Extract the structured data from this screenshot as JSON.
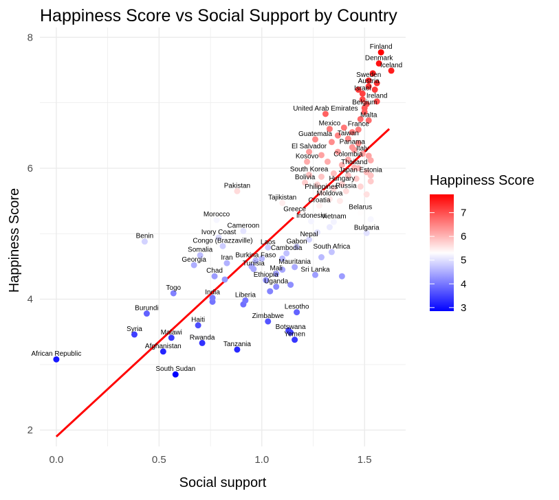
{
  "chart_data": {
    "type": "scatter",
    "title": "Happiness Score vs Social Support by Country",
    "xlabel": "Social support",
    "ylabel": "Happiness Score",
    "xlim": [
      -0.08,
      1.7
    ],
    "ylim": [
      1.75,
      8.15
    ],
    "x_ticks": [
      0.0,
      0.5,
      1.0,
      1.5
    ],
    "x_tick_labels": [
      "0.0",
      "0.5",
      "1.0",
      "1.5"
    ],
    "y_ticks": [
      2,
      4,
      6,
      8
    ],
    "y_tick_labels": [
      "2",
      "4",
      "6",
      "8"
    ],
    "grid": true,
    "legend": {
      "title": "Happiness Score",
      "position": "right",
      "min": 2.85,
      "max": 7.77,
      "ticks": [
        3,
        4,
        5,
        6,
        7
      ],
      "tick_labels": [
        "3",
        "4",
        "5",
        "6",
        "7"
      ],
      "colors": {
        "low": "#0000ff",
        "mid": "#ffffff",
        "high": "#ff0000",
        "midpoint": 5.3
      }
    },
    "trend_line": {
      "x": [
        0.0,
        1.62
      ],
      "y": [
        1.9,
        6.6
      ],
      "color": "#ff0000"
    },
    "labeled_points": [
      {
        "name": "Finland",
        "x": 1.58,
        "y": 7.77
      },
      {
        "name": "Denmark",
        "x": 1.57,
        "y": 7.6
      },
      {
        "name": "Iceland",
        "x": 1.63,
        "y": 7.49
      },
      {
        "name": "Sweden",
        "x": 1.52,
        "y": 7.34
      },
      {
        "name": "Austria",
        "x": 1.52,
        "y": 7.25
      },
      {
        "name": "Israel",
        "x": 1.49,
        "y": 7.14
      },
      {
        "name": "Ireland",
        "x": 1.56,
        "y": 7.02
      },
      {
        "name": "Belgium",
        "x": 1.5,
        "y": 6.92
      },
      {
        "name": "United Arab Emirates",
        "x": 1.31,
        "y": 6.83
      },
      {
        "name": "Malta",
        "x": 1.52,
        "y": 6.73
      },
      {
        "name": "France",
        "x": 1.47,
        "y": 6.59
      },
      {
        "name": "Mexico",
        "x": 1.33,
        "y": 6.6
      },
      {
        "name": "Taiwan",
        "x": 1.42,
        "y": 6.45
      },
      {
        "name": "Guatemala",
        "x": 1.26,
        "y": 6.44
      },
      {
        "name": "Panama",
        "x": 1.44,
        "y": 6.32
      },
      {
        "name": "El Salvador",
        "x": 1.23,
        "y": 6.25
      },
      {
        "name": "Italy",
        "x": 1.49,
        "y": 6.22
      },
      {
        "name": "Colombia",
        "x": 1.42,
        "y": 6.13
      },
      {
        "name": "Kosovo",
        "x": 1.22,
        "y": 6.1
      },
      {
        "name": "Thailand",
        "x": 1.45,
        "y": 6.01
      },
      {
        "name": "South Korea",
        "x": 1.23,
        "y": 5.9
      },
      {
        "name": "Japan",
        "x": 1.42,
        "y": 5.89
      },
      {
        "name": "Estonia",
        "x": 1.53,
        "y": 5.89
      },
      {
        "name": "Bolivia",
        "x": 1.21,
        "y": 5.78
      },
      {
        "name": "Hungary",
        "x": 1.39,
        "y": 5.76
      },
      {
        "name": "Philippines",
        "x": 1.29,
        "y": 5.63
      },
      {
        "name": "Russia",
        "x": 1.41,
        "y": 5.65
      },
      {
        "name": "Pakistan",
        "x": 0.88,
        "y": 5.65
      },
      {
        "name": "Moldova",
        "x": 1.33,
        "y": 5.53
      },
      {
        "name": "Tajikistan",
        "x": 1.1,
        "y": 5.47
      },
      {
        "name": "Croatia",
        "x": 1.28,
        "y": 5.43
      },
      {
        "name": "Belarus",
        "x": 1.48,
        "y": 5.32
      },
      {
        "name": "Greece",
        "x": 1.16,
        "y": 5.29
      },
      {
        "name": "Morocco",
        "x": 0.78,
        "y": 5.21
      },
      {
        "name": "Indonesia",
        "x": 1.24,
        "y": 5.19
      },
      {
        "name": "Vietnam",
        "x": 1.35,
        "y": 5.18
      },
      {
        "name": "Cameroon",
        "x": 0.91,
        "y": 5.04
      },
      {
        "name": "Bulgaria",
        "x": 1.51,
        "y": 5.01
      },
      {
        "name": "Ivory Coast",
        "x": 0.79,
        "y": 4.94
      },
      {
        "name": "Nepal",
        "x": 1.23,
        "y": 4.91
      },
      {
        "name": "Benin",
        "x": 0.43,
        "y": 4.88
      },
      {
        "name": "Congo (Brazzaville)",
        "x": 0.81,
        "y": 4.81
      },
      {
        "name": "Gabon",
        "x": 1.17,
        "y": 4.8
      },
      {
        "name": "Laos",
        "x": 1.03,
        "y": 4.79
      },
      {
        "name": "South Africa",
        "x": 1.34,
        "y": 4.72
      },
      {
        "name": "Cambodia",
        "x": 1.12,
        "y": 4.7
      },
      {
        "name": "Somalia",
        "x": 0.7,
        "y": 4.67
      },
      {
        "name": "Burkina Faso",
        "x": 0.97,
        "y": 4.59
      },
      {
        "name": "Georgia",
        "x": 0.67,
        "y": 4.52
      },
      {
        "name": "Iran",
        "x": 0.83,
        "y": 4.55
      },
      {
        "name": "Mauritania",
        "x": 1.16,
        "y": 4.49
      },
      {
        "name": "Tunisia",
        "x": 0.96,
        "y": 4.46
      },
      {
        "name": "Mali",
        "x": 1.07,
        "y": 4.39
      },
      {
        "name": "Sri Lanka",
        "x": 1.26,
        "y": 4.37
      },
      {
        "name": "Chad",
        "x": 0.77,
        "y": 4.35
      },
      {
        "name": "Ethiopia",
        "x": 1.02,
        "y": 4.29
      },
      {
        "name": "Uganda",
        "x": 1.07,
        "y": 4.19
      },
      {
        "name": "Togo",
        "x": 0.57,
        "y": 4.09
      },
      {
        "name": "India",
        "x": 0.76,
        "y": 4.02
      },
      {
        "name": "Liberia",
        "x": 0.92,
        "y": 3.98
      },
      {
        "name": "Burundi",
        "x": 0.44,
        "y": 3.78
      },
      {
        "name": "Lesotho",
        "x": 1.17,
        "y": 3.8
      },
      {
        "name": "Zimbabwe",
        "x": 1.03,
        "y": 3.66
      },
      {
        "name": "Haiti",
        "x": 0.69,
        "y": 3.6
      },
      {
        "name": "Syria",
        "x": 0.38,
        "y": 3.46
      },
      {
        "name": "Botswana",
        "x": 1.14,
        "y": 3.49
      },
      {
        "name": "Malawi",
        "x": 0.56,
        "y": 3.41
      },
      {
        "name": "Yemen",
        "x": 1.16,
        "y": 3.38
      },
      {
        "name": "Rwanda",
        "x": 0.71,
        "y": 3.33
      },
      {
        "name": "Afghanistan",
        "x": 0.52,
        "y": 3.2
      },
      {
        "name": "Tanzania",
        "x": 0.88,
        "y": 3.23
      },
      {
        "name": "African Republic",
        "x": 0.0,
        "y": 3.08
      },
      {
        "name": "South Sudan",
        "x": 0.58,
        "y": 2.85
      }
    ],
    "unlabeled_points": [
      {
        "x": 1.54,
        "y": 7.45
      },
      {
        "x": 1.56,
        "y": 7.3
      },
      {
        "x": 1.55,
        "y": 7.2
      },
      {
        "x": 1.47,
        "y": 7.2
      },
      {
        "x": 1.49,
        "y": 7.05
      },
      {
        "x": 1.51,
        "y": 6.98
      },
      {
        "x": 1.5,
        "y": 6.86
      },
      {
        "x": 1.48,
        "y": 6.75
      },
      {
        "x": 1.4,
        "y": 6.62
      },
      {
        "x": 1.44,
        "y": 6.55
      },
      {
        "x": 1.37,
        "y": 6.5
      },
      {
        "x": 1.34,
        "y": 6.4
      },
      {
        "x": 1.47,
        "y": 6.38
      },
      {
        "x": 1.45,
        "y": 6.28
      },
      {
        "x": 1.29,
        "y": 6.2
      },
      {
        "x": 1.37,
        "y": 6.25
      },
      {
        "x": 1.52,
        "y": 6.19
      },
      {
        "x": 1.53,
        "y": 6.12
      },
      {
        "x": 1.32,
        "y": 6.1
      },
      {
        "x": 1.39,
        "y": 6.05
      },
      {
        "x": 1.47,
        "y": 6.0
      },
      {
        "x": 1.51,
        "y": 5.94
      },
      {
        "x": 1.35,
        "y": 5.92
      },
      {
        "x": 1.29,
        "y": 5.87
      },
      {
        "x": 1.46,
        "y": 5.84
      },
      {
        "x": 1.53,
        "y": 5.8
      },
      {
        "x": 1.27,
        "y": 5.75
      },
      {
        "x": 1.48,
        "y": 5.72
      },
      {
        "x": 1.35,
        "y": 5.69
      },
      {
        "x": 1.51,
        "y": 5.6
      },
      {
        "x": 1.38,
        "y": 5.5
      },
      {
        "x": 1.2,
        "y": 5.35
      },
      {
        "x": 1.53,
        "y": 5.22
      },
      {
        "x": 1.33,
        "y": 5.1
      },
      {
        "x": 1.27,
        "y": 5.02
      },
      {
        "x": 1.0,
        "y": 4.62
      },
      {
        "x": 1.1,
        "y": 4.62
      },
      {
        "x": 1.29,
        "y": 4.64
      },
      {
        "x": 1.39,
        "y": 4.35
      },
      {
        "x": 0.95,
        "y": 4.5
      },
      {
        "x": 1.1,
        "y": 4.45
      },
      {
        "x": 1.14,
        "y": 4.22
      },
      {
        "x": 1.04,
        "y": 4.12
      },
      {
        "x": 0.82,
        "y": 4.3
      },
      {
        "x": 0.76,
        "y": 3.96
      },
      {
        "x": 0.91,
        "y": 3.92
      },
      {
        "x": 1.13,
        "y": 3.52
      }
    ]
  }
}
